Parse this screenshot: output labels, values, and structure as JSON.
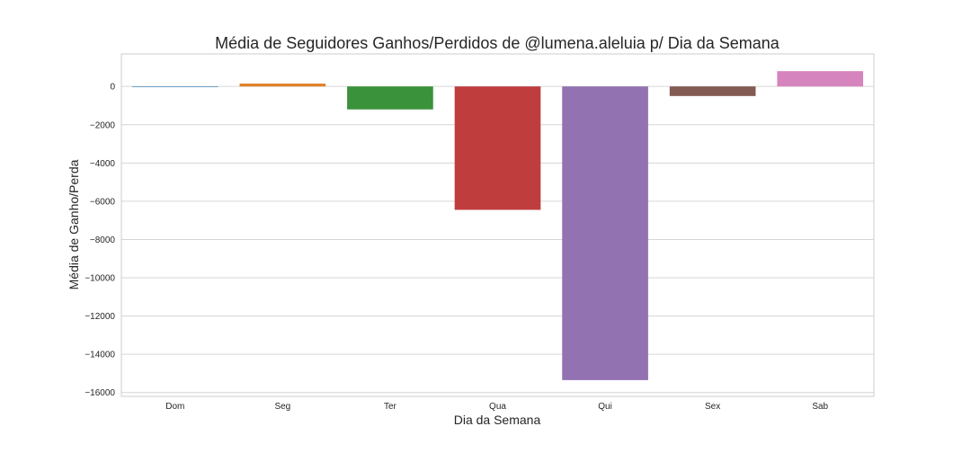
{
  "chart_data": {
    "type": "bar",
    "title": "Média de Seguidores Ganhos/Perdidos de @lumena.aleluia p/ Dia da Semana",
    "xlabel": "Dia da Semana",
    "ylabel": "Média de Ganho/Perda",
    "categories": [
      "Dom",
      "Seg",
      "Ter",
      "Qua",
      "Qui",
      "Sex",
      "Sab"
    ],
    "values": [
      0,
      150,
      -1200,
      -6450,
      -15350,
      -500,
      800
    ],
    "colors": [
      "#1f77b4",
      "#e1812c",
      "#3a923a",
      "#c03d3e",
      "#9372b2",
      "#845b53",
      "#d684bd"
    ],
    "ylim": [
      -16200,
      1700
    ],
    "yticks": [
      0,
      -2000,
      -4000,
      -6000,
      -8000,
      -10000,
      -12000,
      -14000,
      -16000
    ],
    "grid": true,
    "legend": "none"
  }
}
